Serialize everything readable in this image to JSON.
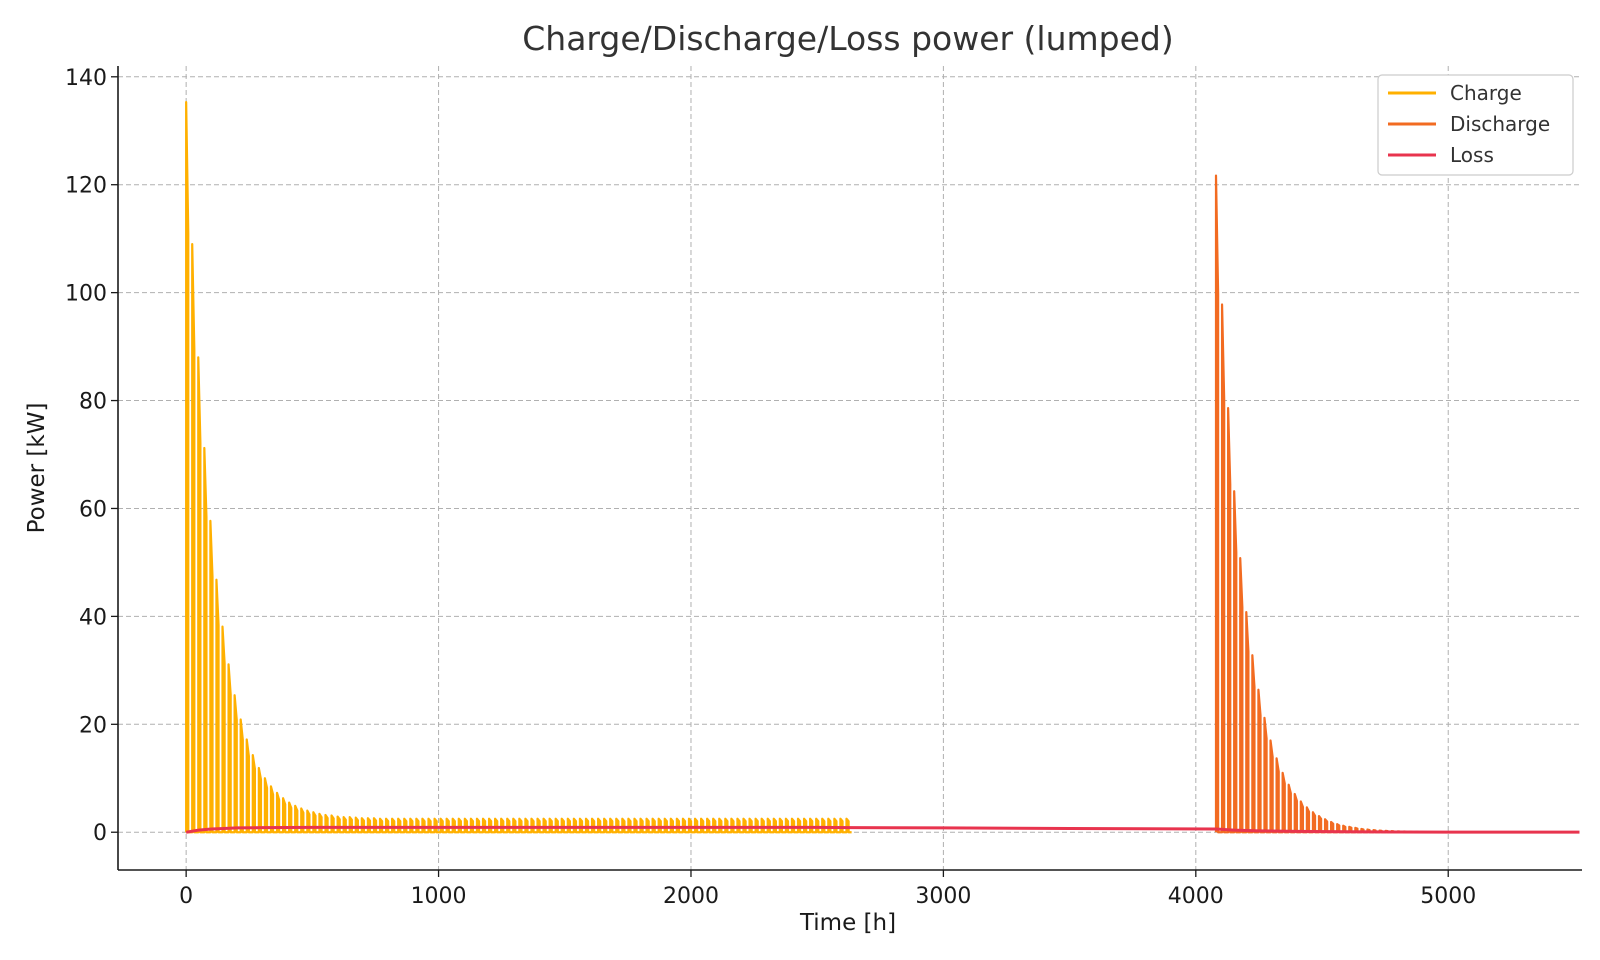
{
  "chart_data": {
    "type": "line",
    "title": "Charge/Discharge/Loss power (lumped)",
    "xlabel": "Time [h]",
    "ylabel": "Power [kW]",
    "xlim": [
      -270,
      5530
    ],
    "ylim": [
      -7,
      142
    ],
    "xticks": [
      0,
      1000,
      2000,
      3000,
      4000,
      5000
    ],
    "xtick_labels": [
      "0",
      "1000",
      "2000",
      "3000",
      "4000",
      "5000"
    ],
    "yticks": [
      0,
      20,
      40,
      60,
      80,
      100,
      120,
      140
    ],
    "ytick_labels": [
      "0",
      "20",
      "40",
      "60",
      "80",
      "100",
      "120",
      "140"
    ],
    "grid": true,
    "legend_position": "top-right",
    "colors": {
      "Charge": "#FFB000",
      "Discharge": "#F26B21",
      "Loss": "#E8344E"
    },
    "series": [
      {
        "name": "Charge",
        "pulse_period_h": 24,
        "x": [
          0,
          24,
          48,
          72,
          96,
          120,
          144,
          168,
          192,
          216,
          240,
          264,
          288,
          312,
          336,
          360,
          384,
          408,
          432,
          456,
          480,
          504,
          528,
          552,
          576,
          600,
          624,
          648,
          672,
          696,
          720,
          744,
          768,
          792,
          816,
          840,
          864,
          888,
          912,
          936,
          960,
          984,
          1008,
          1032,
          1056,
          1080,
          1104,
          1128,
          1152,
          1176,
          1200,
          1224,
          1248,
          1272,
          1296,
          1320,
          1344,
          1368,
          1392,
          1416,
          1440,
          1464,
          1488,
          1512,
          1536,
          1560,
          1584,
          1608,
          1632,
          1656,
          1680,
          1704,
          1728,
          1752,
          1776,
          1800,
          1824,
          1848,
          1872,
          1896,
          1920,
          1944,
          1968,
          1992,
          2016,
          2040,
          2064,
          2088,
          2112,
          2136,
          2160,
          2184,
          2208,
          2232,
          2256,
          2280,
          2304,
          2328,
          2352,
          2376,
          2400,
          2424,
          2448,
          2472,
          2496,
          2520,
          2544,
          2568,
          2592,
          2616
        ],
        "peaks": [
          135.3,
          109.0,
          88.0,
          71.2,
          57.7,
          46.8,
          38.1,
          31.1,
          25.4,
          20.9,
          17.2,
          14.3,
          11.9,
          10.0,
          8.5,
          7.3,
          6.3,
          5.5,
          4.9,
          4.4,
          4.0,
          3.7,
          3.4,
          3.2,
          3.1,
          2.9,
          2.8,
          2.8,
          2.7,
          2.6,
          2.6,
          2.6,
          2.5,
          2.5,
          2.5,
          2.5,
          2.5,
          2.5,
          2.5,
          2.5,
          2.5,
          2.5,
          2.5,
          2.5,
          2.5,
          2.5,
          2.5,
          2.5,
          2.5,
          2.5,
          2.5,
          2.5,
          2.5,
          2.5,
          2.5,
          2.5,
          2.5,
          2.5,
          2.5,
          2.5,
          2.5,
          2.5,
          2.5,
          2.5,
          2.5,
          2.5,
          2.5,
          2.5,
          2.5,
          2.5,
          2.5,
          2.5,
          2.5,
          2.5,
          2.5,
          2.5,
          2.5,
          2.5,
          2.5,
          2.5,
          2.5,
          2.5,
          2.5,
          2.5,
          2.5,
          2.5,
          2.5,
          2.5,
          2.5,
          2.5,
          2.5,
          2.5,
          2.5,
          2.5,
          2.5,
          2.5,
          2.5,
          2.5,
          2.5,
          2.5,
          2.5,
          2.5,
          2.5,
          2.5,
          2.5,
          2.5,
          2.5,
          2.5,
          2.5,
          2.5
        ]
      },
      {
        "name": "Discharge",
        "pulse_period_h": 24,
        "x": [
          4080,
          4104,
          4128,
          4152,
          4176,
          4200,
          4224,
          4248,
          4272,
          4296,
          4320,
          4344,
          4368,
          4392,
          4416,
          4440,
          4464,
          4488,
          4512,
          4536,
          4560,
          4584,
          4608,
          4632,
          4656,
          4680,
          4704,
          4728,
          4752,
          4776,
          4800,
          4824,
          4848,
          4872
        ],
        "peaks": [
          121.7,
          97.8,
          78.6,
          63.2,
          50.8,
          40.8,
          32.8,
          26.4,
          21.2,
          17.0,
          13.7,
          11.0,
          8.8,
          7.1,
          5.7,
          4.6,
          3.7,
          3.0,
          2.4,
          1.9,
          1.5,
          1.2,
          1.0,
          0.8,
          0.6,
          0.5,
          0.4,
          0.3,
          0.25,
          0.2,
          0.16,
          0.13,
          0.1,
          0.08
        ]
      },
      {
        "name": "Loss",
        "x": [
          0,
          50,
          100,
          150,
          200,
          300,
          500,
          1000,
          1500,
          2000,
          2500,
          2640,
          3000,
          3500,
          4080,
          4150,
          4250,
          4400,
          4600,
          4800,
          5000,
          5200,
          5520
        ],
        "values": [
          0,
          0.4,
          0.6,
          0.7,
          0.8,
          0.85,
          0.9,
          0.9,
          0.9,
          0.9,
          0.9,
          0.85,
          0.8,
          0.7,
          0.6,
          0.4,
          0.25,
          0.15,
          0.08,
          0.04,
          0.02,
          0.01,
          0.01
        ]
      }
    ]
  }
}
